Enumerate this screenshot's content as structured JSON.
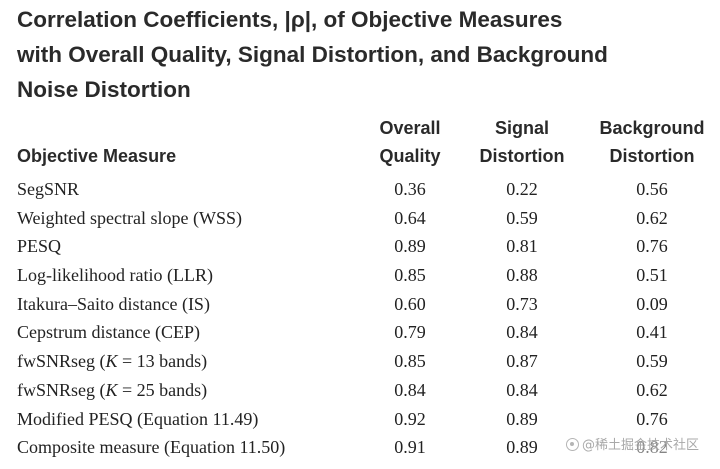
{
  "title": {
    "lines": [
      "Correlation Coefficients, |ρ|, of Objective Measures",
      "with Overall Quality, Signal Distortion, and Background",
      "Noise Distortion"
    ]
  },
  "table": {
    "headers": {
      "measure": "Objective Measure",
      "overall": [
        "Overall",
        "Quality"
      ],
      "signal": [
        "Signal",
        "Distortion"
      ],
      "background": [
        "Background",
        "Distortion"
      ]
    },
    "rows": [
      {
        "measure": "SegSNR",
        "overall": "0.36",
        "signal": "0.22",
        "background": "0.56"
      },
      {
        "measure": "Weighted spectral slope (WSS)",
        "overall": "0.64",
        "signal": "0.59",
        "background": "0.62"
      },
      {
        "measure": "PESQ",
        "overall": "0.89",
        "signal": "0.81",
        "background": "0.76"
      },
      {
        "measure": "Log-likelihood ratio (LLR)",
        "overall": "0.85",
        "signal": "0.88",
        "background": "0.51"
      },
      {
        "measure": "Itakura–Saito distance (IS)",
        "overall": "0.60",
        "signal": "0.73",
        "background": "0.09"
      },
      {
        "measure": "Cepstrum distance (CEP)",
        "overall": "0.79",
        "signal": "0.84",
        "background": "0.41"
      },
      {
        "measure_pre": "fwSNRseg (",
        "measure_italic": "K",
        "measure_post": " = 13 bands)",
        "overall": "0.85",
        "signal": "0.87",
        "background": "0.59"
      },
      {
        "measure_pre": "fwSNRseg (",
        "measure_italic": "K",
        "measure_post": " = 25 bands)",
        "overall": "0.84",
        "signal": "0.84",
        "background": "0.62"
      },
      {
        "measure": "Modified PESQ (Equation 11.49)",
        "overall": "0.92",
        "signal": "0.89",
        "background": "0.76"
      },
      {
        "measure": "Composite measure (Equation 11.50)",
        "overall": "0.91",
        "signal": "0.89",
        "background": "0.82"
      }
    ]
  },
  "watermark": {
    "text": "@稀土掘金技术社区",
    "icon": "brand-logo-icon"
  }
}
